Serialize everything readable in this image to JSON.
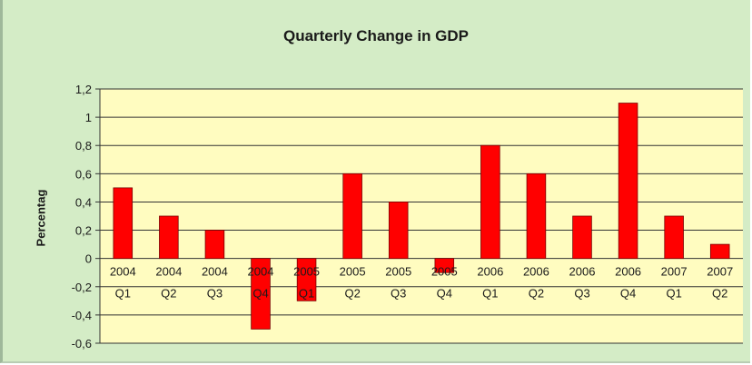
{
  "chart_data": {
    "type": "bar",
    "title": "Quarterly Change in GDP",
    "xlabel": "",
    "ylabel": "Percentag",
    "ylim": [
      -0.6,
      1.2
    ],
    "yticks": [
      -0.6,
      -0.4,
      -0.2,
      0,
      0.2,
      0.4,
      0.6,
      0.8,
      1,
      1.2
    ],
    "ytick_labels": [
      "-0,6",
      "-0,4",
      "-0,2",
      "0",
      "0,2",
      "0,4",
      "0,6",
      "0,8",
      "1",
      "1,2"
    ],
    "grid": true,
    "legend": "none",
    "categories": [
      {
        "year": "2004",
        "quarter": "Q1"
      },
      {
        "year": "2004",
        "quarter": "Q2"
      },
      {
        "year": "2004",
        "quarter": "Q3"
      },
      {
        "year": "2004",
        "quarter": "Q4"
      },
      {
        "year": "2005",
        "quarter": "Q1"
      },
      {
        "year": "2005",
        "quarter": "Q2"
      },
      {
        "year": "2005",
        "quarter": "Q3"
      },
      {
        "year": "2005",
        "quarter": "Q4"
      },
      {
        "year": "2006",
        "quarter": "Q1"
      },
      {
        "year": "2006",
        "quarter": "Q2"
      },
      {
        "year": "2006",
        "quarter": "Q3"
      },
      {
        "year": "2006",
        "quarter": "Q4"
      },
      {
        "year": "2007",
        "quarter": "Q1"
      },
      {
        "year": "2007",
        "quarter": "Q2"
      }
    ],
    "values": [
      0.5,
      0.3,
      0.2,
      -0.5,
      -0.3,
      0.6,
      0.4,
      -0.1,
      0.8,
      0.6,
      0.3,
      1.1,
      0.3,
      0.1
    ],
    "colors": {
      "bar": "#ff0000",
      "bar_edge": "#7a0000",
      "plot_bg": "#fffcc0",
      "outer_bg": "#d4ecc6",
      "grid": "#333333"
    }
  }
}
